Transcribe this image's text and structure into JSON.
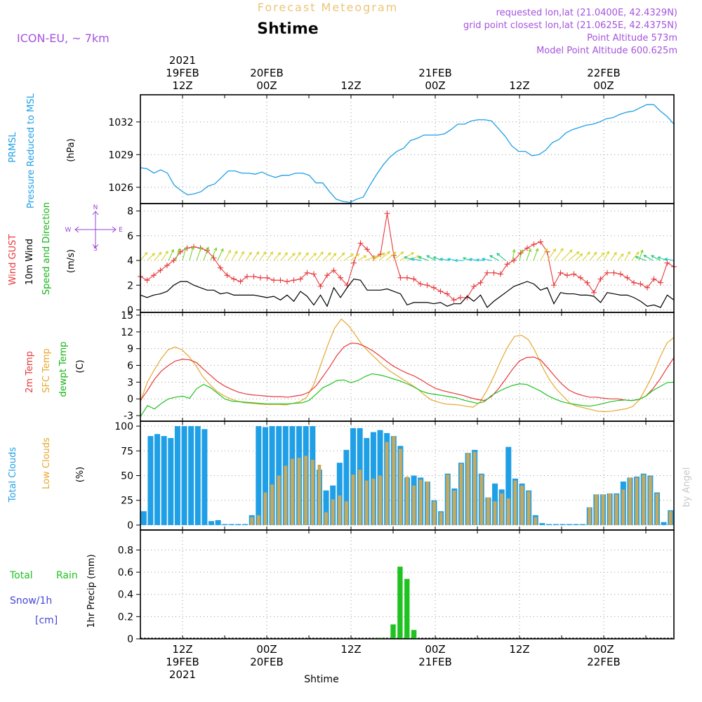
{
  "header": {
    "title": "Forecast Meteogram",
    "place": "Shtime",
    "model": "ICON-EU, ~ 7km",
    "requested": "requested lon,lat (21.0400E, 42.4329N)",
    "grid_point": "grid point closest lon,lat (21.0625E, 42.4375N)",
    "point_alt": "Point Altitude 573m",
    "model_alt": "Model Point Altitude 600.625m",
    "credit": "by Angel",
    "footer": "Shtime"
  },
  "colors": {
    "pressure": "#1f9fe6",
    "gust": "#e8393c",
    "wind": "#000000",
    "direction_label": "#16b516",
    "t2m": "#e8393c",
    "sfc": "#e5a830",
    "dewpt": "#1fc31f",
    "total_clouds": "#1f9fe6",
    "low_clouds": "#c8a85a",
    "rain": "#1fc31f",
    "snow": "#4646d8",
    "compass": "#9a44d6"
  },
  "time_axis": {
    "year": "2021",
    "ticks": [
      {
        "t": 6,
        "top": "12Z",
        "date": "19FEB",
        "year": "2021"
      },
      {
        "t": 18,
        "top": "00Z",
        "date": "20FEB"
      },
      {
        "t": 30,
        "top": "12Z"
      },
      {
        "t": 42,
        "top": "00Z",
        "date": "21FEB"
      },
      {
        "t": 54,
        "top": "12Z"
      },
      {
        "t": 66,
        "top": "00Z",
        "date": "22FEB"
      }
    ],
    "tmin": 0,
    "tmax": 76
  },
  "panel_labels": {
    "pressure": {
      "l1": "PRMSL",
      "l2": "Pressure Reduced to MSL",
      "unit": "(hPa)"
    },
    "wind": {
      "l1": "Wind GUST",
      "l2": "10m Wind",
      "l3": "Speed and Direction",
      "unit": "(m/s)"
    },
    "compass": {
      "n": "N",
      "s": "S",
      "w": "W",
      "e": "E"
    },
    "temp": {
      "l1": "2m Temp",
      "l2": "SFC Temp",
      "l3": "dewpt Temp",
      "unit": "(C)"
    },
    "clouds": {
      "l1": "Total Clouds",
      "l2": "Low Clouds",
      "unit": "(%)"
    },
    "precip": {
      "l1a": "Total",
      "l1b": "Rain",
      "l2": "Snow/1h",
      "l3": "[cm]",
      "unit": "1hr Precip (mm)"
    }
  },
  "chart_data": [
    {
      "type": "line",
      "name": "pressure",
      "yticks": [
        1026,
        1029,
        1032
      ],
      "ylim": [
        1024.5,
        1034.5
      ],
      "x": [
        0,
        1,
        2,
        3,
        4,
        5,
        6,
        7,
        8,
        9,
        10,
        11,
        12,
        13,
        14,
        15,
        16,
        17,
        18,
        19,
        20,
        21,
        22,
        23,
        24,
        25,
        26,
        27,
        28,
        29,
        30,
        31,
        32,
        33,
        34,
        35,
        36,
        37,
        38,
        39,
        40,
        41,
        42,
        43,
        44,
        45,
        46,
        47,
        48,
        49,
        50,
        51,
        52,
        53,
        54,
        55,
        56,
        57,
        58,
        59,
        60,
        61,
        62,
        63,
        64,
        65,
        66,
        67,
        68,
        69,
        70,
        71,
        72,
        73,
        74,
        75,
        76
      ],
      "values": [
        1027.8,
        1027.7,
        1027.3,
        1027.6,
        1027.3,
        1026.2,
        1025.7,
        1025.3,
        1025.4,
        1025.6,
        1026.1,
        1026.3,
        1026.9,
        1027.5,
        1027.5,
        1027.3,
        1027.3,
        1027.2,
        1027.4,
        1027.1,
        1026.9,
        1027.1,
        1027.1,
        1027.3,
        1027.3,
        1027.1,
        1026.4,
        1026.4,
        1025.6,
        1024.9,
        1024.7,
        1024.6,
        1024.9,
        1025.1,
        1026.2,
        1027.2,
        1028.1,
        1028.8,
        1029.3,
        1029.6,
        1030.3,
        1030.5,
        1030.8,
        1030.8,
        1030.8,
        1030.9,
        1031.3,
        1031.8,
        1031.8,
        1032.1,
        1032.2,
        1032.2,
        1032.1,
        1031.4,
        1030.7,
        1029.8,
        1029.3,
        1029.3,
        1028.9,
        1029.0,
        1029.4,
        1030.1,
        1030.4,
        1031.0,
        1031.3,
        1031.5,
        1031.7,
        1031.8,
        1032.0,
        1032.3,
        1032.4,
        1032.7,
        1032.9,
        1033.0,
        1033.3,
        1033.6,
        1033.6
      ],
      "tail": [
        1033.0,
        1032.5,
        1031.8
      ]
    },
    {
      "type": "line",
      "name": "wind",
      "yticks": [
        0,
        2,
        4,
        6,
        8
      ],
      "ylim": [
        -0.2,
        8.6
      ],
      "gust": [
        2.7,
        2.4,
        2.8,
        3.2,
        3.6,
        4.0,
        4.7,
        5.0,
        5.1,
        5.0,
        4.8,
        4.2,
        3.4,
        2.8,
        2.5,
        2.3,
        2.7,
        2.7,
        2.6,
        2.6,
        2.4,
        2.4,
        2.3,
        2.4,
        2.5,
        3.0,
        2.9,
        1.9,
        2.8,
        3.2,
        2.6,
        2.0,
        3.8,
        5.4,
        4.9,
        4.2,
        4.5,
        7.8,
        4.4,
        2.6,
        2.6,
        2.5,
        2.1,
        2.0,
        1.8,
        1.5,
        1.3,
        0.8,
        1.0,
        1.0,
        1.9,
        2.2,
        3.0,
        3.0,
        2.9,
        3.7,
        4.0,
        4.6,
        5.0,
        5.3,
        5.5,
        4.7,
        2.0,
        3.0,
        2.8,
        2.9,
        2.6,
        2.2,
        1.4,
        2.5,
        3.0,
        3.0,
        2.9,
        2.6,
        2.2,
        2.1,
        1.8
      ],
      "gust_tail": [
        2.5,
        2.2,
        3.8,
        3.5
      ],
      "speed": [
        1.2,
        1.0,
        1.2,
        1.3,
        1.5,
        2.0,
        2.3,
        2.3,
        2.0,
        1.8,
        1.6,
        1.6,
        1.3,
        1.4,
        1.2,
        1.2,
        1.2,
        1.2,
        1.1,
        1.0,
        1.1,
        0.8,
        1.2,
        0.7,
        1.5,
        1.1,
        0.4,
        1.2,
        0.3,
        1.8,
        1.0,
        1.8,
        2.5,
        2.4,
        1.6,
        1.6,
        1.6,
        1.7,
        1.5,
        1.3,
        0.4,
        0.6,
        0.6,
        0.6,
        0.5,
        0.6,
        0.3,
        0.5,
        0.5,
        1.1,
        0.7,
        1.2,
        0.2,
        0.7,
        1.1,
        1.5,
        1.9,
        2.1,
        2.3,
        2.1,
        1.6,
        1.8,
        0.5,
        1.4,
        1.3,
        1.3,
        1.2,
        1.2,
        1.1,
        0.6,
        1.4,
        1.3,
        1.2,
        1.2,
        1.0,
        0.7,
        0.3
      ],
      "speed_tail": [
        0.4,
        0.2,
        1.2,
        0.8
      ],
      "direction_deg": [
        220,
        225,
        220,
        215,
        205,
        200,
        195,
        195,
        200,
        200,
        205,
        205,
        210,
        210,
        210,
        215,
        215,
        215,
        215,
        220,
        220,
        225,
        215,
        220,
        225,
        220,
        225,
        220,
        225,
        235,
        230,
        240,
        250,
        240,
        230,
        230,
        230,
        240,
        250,
        110,
        100,
        110,
        120,
        110,
        100,
        100,
        90,
        110,
        100,
        95,
        100,
        120,
        130,
        190,
        195,
        200,
        200,
        210,
        215,
        215,
        225,
        230,
        225,
        220,
        220,
        225,
        210,
        215,
        220,
        210,
        220,
        200,
        110,
        120,
        120,
        110,
        100
      ]
    },
    {
      "type": "line",
      "name": "temperature",
      "yticks": [
        -3,
        0,
        3,
        6,
        9,
        12,
        15
      ],
      "ylim": [
        -4,
        15.5
      ],
      "t2m": [
        -0.3,
        1.5,
        3.5,
        5.0,
        6.0,
        6.8,
        7.1,
        7.0,
        6.5,
        5.3,
        4.2,
        3.1,
        2.3,
        1.7,
        1.2,
        0.9,
        0.7,
        0.6,
        0.5,
        0.4,
        0.4,
        0.3,
        0.5,
        0.7,
        1.2,
        2.3,
        4.0,
        5.8,
        7.8,
        9.3,
        10.0,
        9.9,
        9.4,
        8.7,
        7.8,
        6.8,
        5.9,
        5.2,
        4.6,
        4.1,
        3.4,
        2.6,
        1.9,
        1.5,
        1.2,
        0.9,
        0.6,
        0.2,
        -0.1,
        -0.3,
        0.4,
        1.8,
        3.5,
        5.3,
        6.8,
        7.4,
        7.5,
        7.0,
        5.6,
        4.1,
        2.7,
        1.6,
        1.0,
        0.6,
        0.3,
        0.3,
        0.1,
        0.0,
        0.0,
        -0.2,
        -0.3,
        -0.1,
        0.5,
        1.8,
        3.5,
        5.5,
        7.4
      ],
      "sfc": [
        -0.5,
        3.0,
        5.2,
        7.2,
        8.8,
        9.3,
        8.8,
        7.6,
        6.0,
        4.0,
        2.6,
        1.4,
        0.6,
        0.0,
        -0.4,
        -0.7,
        -0.8,
        -0.9,
        -1.0,
        -1.0,
        -1.0,
        -1.1,
        -0.8,
        -0.5,
        0.3,
        2.5,
        6.0,
        9.5,
        12.6,
        14.3,
        13.2,
        11.5,
        9.7,
        8.4,
        7.2,
        6.0,
        5.0,
        4.2,
        3.4,
        2.6,
        1.8,
        0.7,
        -0.2,
        -0.6,
        -0.9,
        -1.0,
        -1.1,
        -1.3,
        -1.5,
        -0.6,
        1.5,
        4.0,
        6.8,
        9.3,
        11.2,
        11.4,
        10.6,
        8.5,
        5.8,
        3.5,
        1.8,
        0.5,
        -0.8,
        -1.3,
        -1.6,
        -1.9,
        -2.2,
        -2.3,
        -2.2,
        -2.0,
        -1.8,
        -1.4,
        -0.2,
        2.0,
        4.5,
        7.5,
        10.0
      ],
      "sfc_tail": [
        11.0
      ],
      "dewpt": [
        -3.2,
        -1.2,
        -1.8,
        -0.8,
        0.0,
        0.3,
        0.5,
        0.1,
        1.8,
        2.6,
        2.0,
        1.0,
        0.0,
        -0.4,
        -0.5,
        -0.6,
        -0.7,
        -0.8,
        -0.9,
        -0.9,
        -0.9,
        -0.9,
        -0.8,
        -0.7,
        -0.3,
        0.8,
        2.0,
        2.6,
        3.3,
        3.4,
        2.9,
        3.3,
        4.0,
        4.5,
        4.3,
        4.0,
        3.6,
        3.2,
        2.7,
        2.1,
        1.4,
        1.0,
        0.8,
        0.6,
        0.4,
        0.2,
        -0.2,
        -0.5,
        -0.8,
        -0.5,
        0.6,
        1.3,
        1.9,
        2.4,
        2.7,
        2.6,
        2.0,
        1.4,
        0.6,
        0.0,
        -0.5,
        -0.8,
        -1.0,
        -1.2,
        -1.3,
        -1.1,
        -0.8,
        -0.5,
        -0.3,
        -0.2,
        -0.3,
        -0.1,
        0.5,
        1.5,
        2.2,
        2.9,
        3.0
      ]
    },
    {
      "type": "bar",
      "name": "clouds",
      "yticks": [
        0,
        25,
        50,
        75,
        100
      ],
      "ylim": [
        -5,
        105
      ],
      "total": [
        14,
        90,
        92,
        90,
        88,
        100,
        100,
        100,
        100,
        97,
        4,
        5,
        1,
        1,
        1,
        1,
        10,
        100,
        99,
        100,
        100,
        100,
        100,
        100,
        100,
        100,
        56,
        35,
        40,
        63,
        76,
        98,
        98,
        88,
        94,
        96,
        93,
        90,
        80,
        48,
        50,
        48,
        44,
        25,
        14,
        52,
        37,
        63,
        73,
        76,
        52,
        28,
        42,
        36,
        79,
        47,
        42,
        35,
        10,
        2,
        1,
        1,
        1,
        1,
        1,
        1,
        18,
        31,
        31,
        32,
        32,
        44,
        48,
        49,
        52,
        50,
        33,
        3,
        15
      ],
      "low": [
        0,
        0,
        0,
        0,
        0,
        0,
        0,
        0,
        0,
        0,
        0,
        0,
        0,
        0,
        0,
        0,
        8,
        10,
        33,
        41,
        50,
        60,
        67,
        68,
        70,
        66,
        61,
        13,
        26,
        30,
        24,
        51,
        56,
        45,
        47,
        50,
        84,
        90,
        77,
        49,
        40,
        46,
        44,
        24,
        13,
        51,
        35,
        62,
        73,
        74,
        51,
        28,
        24,
        32,
        27,
        45,
        40,
        34,
        8,
        0,
        0,
        0,
        0,
        0,
        0,
        0,
        18,
        31,
        31,
        32,
        31,
        36,
        48,
        48,
        51,
        49,
        32,
        0,
        14
      ]
    },
    {
      "type": "bar",
      "name": "precip",
      "yticks": [
        0,
        0.2,
        0.4,
        0.6,
        0.8
      ],
      "ylim": [
        0,
        0.98
      ],
      "rain": [
        0,
        0,
        0,
        0,
        0,
        0,
        0,
        0,
        0,
        0,
        0,
        0,
        0,
        0,
        0,
        0,
        0,
        0,
        0,
        0,
        0,
        0,
        0,
        0,
        0,
        0,
        0,
        0,
        0,
        0,
        0,
        0,
        0,
        0,
        0.01,
        0,
        0.13,
        0.65,
        0.54,
        0.08,
        0,
        0,
        0,
        0,
        0,
        0,
        0,
        0,
        0,
        0,
        0,
        0,
        0,
        0,
        0,
        0,
        0,
        0,
        0,
        0,
        0,
        0,
        0,
        0,
        0,
        0,
        0,
        0,
        0,
        0,
        0,
        0,
        0,
        0,
        0,
        0,
        0
      ]
    }
  ]
}
